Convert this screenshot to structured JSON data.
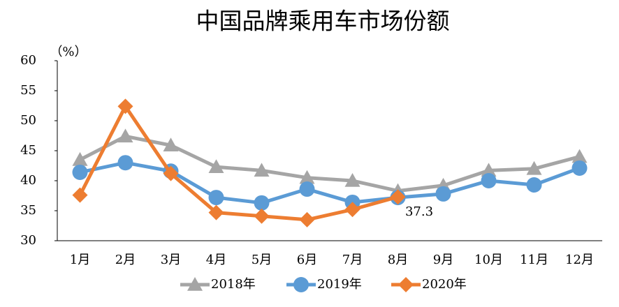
{
  "chart_data": {
    "type": "line",
    "title": "中国品牌乘用车市场份额",
    "y_label": "（%）",
    "categories": [
      "1月",
      "2月",
      "3月",
      "4月",
      "5月",
      "6月",
      "7月",
      "8月",
      "9月",
      "10月",
      "11月",
      "12月"
    ],
    "series": [
      {
        "name": "2018年",
        "color": "#a5a5a5",
        "marker": "triangle",
        "values": [
          43.5,
          47.4,
          45.9,
          42.3,
          41.7,
          40.5,
          40.0,
          38.3,
          39.2,
          41.7,
          42.0,
          44.0
        ]
      },
      {
        "name": "2019年",
        "color": "#5b9bd5",
        "marker": "circle",
        "values": [
          41.4,
          43.0,
          41.6,
          37.2,
          36.3,
          38.6,
          36.4,
          37.2,
          37.8,
          40.0,
          39.3,
          42.1
        ]
      },
      {
        "name": "2020年",
        "color": "#ed7d31",
        "marker": "diamond",
        "values": [
          37.6,
          52.4,
          41.2,
          34.7,
          34.1,
          33.5,
          35.2,
          37.3,
          null,
          null,
          null,
          null
        ]
      }
    ],
    "annotations": [
      "37.3"
    ],
    "ylim": [
      30,
      60
    ],
    "yticks": [
      30,
      35,
      40,
      45,
      50,
      55,
      60
    ],
    "grid": false,
    "legend": "bottom"
  }
}
